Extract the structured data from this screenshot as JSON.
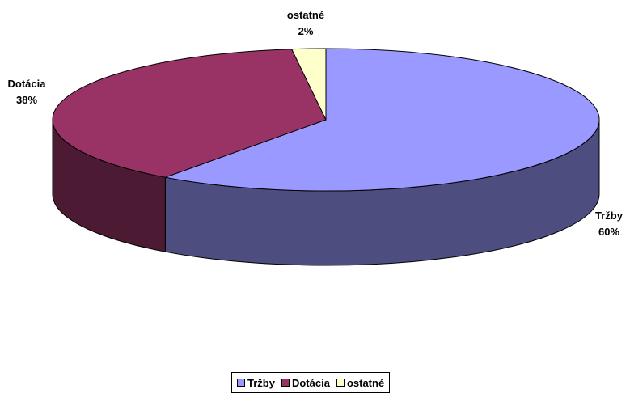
{
  "chart_data": {
    "type": "pie",
    "title": "",
    "series": [
      {
        "categories": [
          "Tržby",
          "Dotácia",
          "ostatné"
        ],
        "values": [
          60,
          38,
          2
        ],
        "labels": [
          "60%",
          "38%",
          "2%"
        ]
      }
    ],
    "colors": {
      "Tržby": {
        "top": "#9999ff",
        "side": "#4d4d80"
      },
      "Dotácia": {
        "top": "#993366",
        "side": "#4d1a33"
      },
      "ostatné": {
        "top": "#ffffcc",
        "side": "#808066"
      }
    },
    "legend_position": "bottom",
    "3d": true
  },
  "legend": {
    "items": [
      "Tržby",
      "Dotácia",
      "ostatné"
    ]
  }
}
